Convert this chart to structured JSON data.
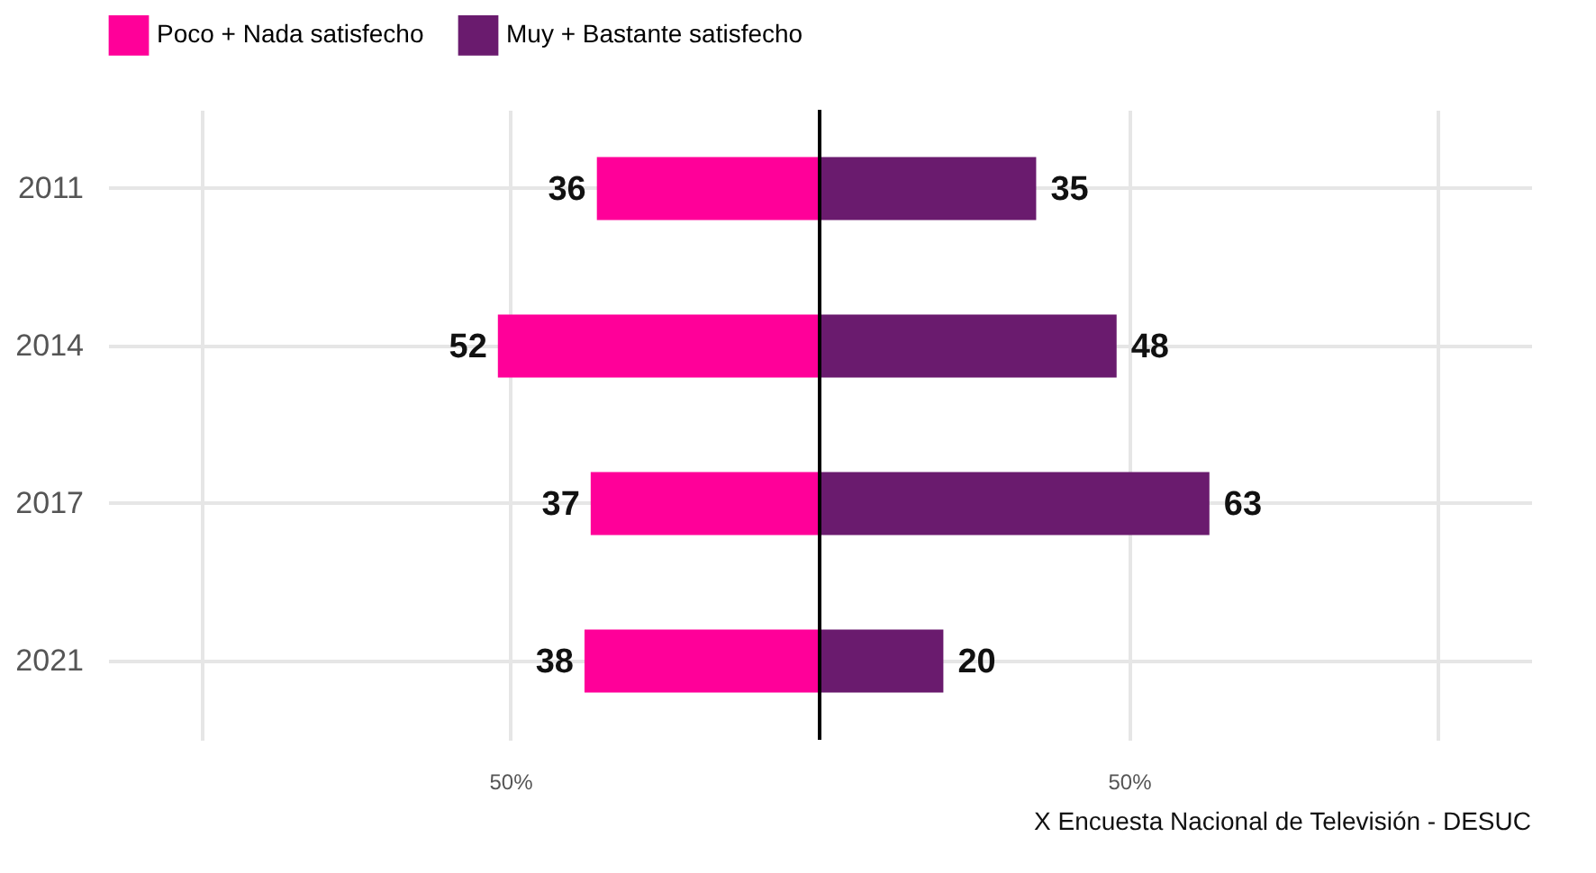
{
  "chart_data": {
    "type": "bar",
    "orientation": "horizontal",
    "categories": [
      "2011",
      "2014",
      "2017",
      "2021"
    ],
    "series": [
      {
        "name": "Poco + Nada satisfecho",
        "color": "#ff0099",
        "values": [
          36,
          52,
          37,
          38
        ],
        "base": [
          -36,
          -52,
          -37,
          -38
        ]
      },
      {
        "name": "Muy + Bastante satisfecho",
        "color": "#6a1b6e",
        "values": [
          35,
          48,
          63,
          20
        ]
      }
    ],
    "data_labels": true,
    "xlim": [
      -115,
      115
    ],
    "xticks": [
      {
        "value": -100,
        "label": null
      },
      {
        "value": -50,
        "label": "50%"
      },
      {
        "value": 50,
        "label": "50%"
      },
      {
        "value": 100,
        "label": null
      }
    ],
    "ref_lines": [
      {
        "axis": "x",
        "value": 0,
        "color": "#000000"
      }
    ],
    "grid": true,
    "legend": "top",
    "annotations": [
      "X Encuesta Nacional de Televisión - DESUC"
    ]
  }
}
